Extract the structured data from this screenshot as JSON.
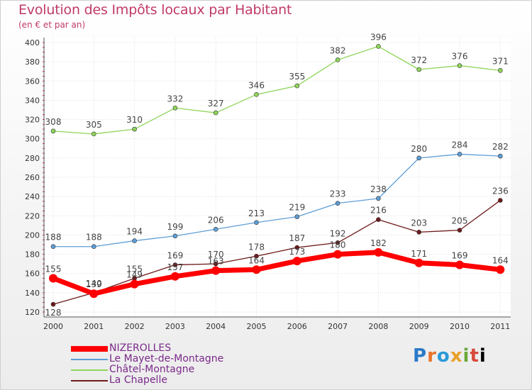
{
  "chart_data": {
    "type": "line",
    "title": "Evolution des Impôts locaux par Habitant",
    "subtitle": "(en € et par an)",
    "x": [
      "2000",
      "2001",
      "2002",
      "2003",
      "2004",
      "2005",
      "2006",
      "2007",
      "2008",
      "2009",
      "2010",
      "2011"
    ],
    "ylim": [
      120,
      400
    ],
    "yticks": [
      120,
      140,
      160,
      180,
      200,
      220,
      240,
      260,
      280,
      300,
      320,
      340,
      360,
      380,
      400
    ],
    "grid": true,
    "legend": "bottom-left",
    "series": [
      {
        "name": "NIZEROLLES",
        "color": "#ff0000",
        "values": [
          155,
          139,
          149,
          157,
          163,
          164,
          173,
          180,
          182,
          171,
          169,
          164
        ]
      },
      {
        "name": "Le Mayet-de-Montagne",
        "color": "#5e9ed6",
        "values": [
          188,
          188,
          194,
          199,
          206,
          213,
          219,
          233,
          238,
          280,
          284,
          282
        ]
      },
      {
        "name": "Châtel-Montagne",
        "color": "#8fd55a",
        "values": [
          308,
          305,
          310,
          332,
          327,
          346,
          355,
          382,
          396,
          372,
          376,
          371
        ]
      },
      {
        "name": "La Chapelle",
        "color": "#6e1a1a",
        "values": [
          128,
          140,
          155,
          169,
          170,
          178,
          187,
          192,
          216,
          203,
          205,
          236
        ]
      }
    ]
  },
  "logo_text": "Proxiti"
}
